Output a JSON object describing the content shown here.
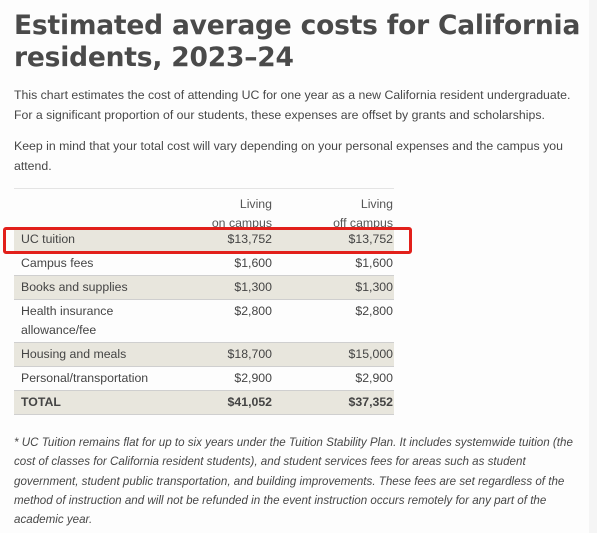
{
  "title": "Estimated average costs for California residents, 2023–24",
  "intro": "This chart estimates the cost of attending UC for one year as a new California resident undergraduate. For a significant proportion of our students, these expenses are offset by grants and scholarships.",
  "intro2": "Keep in mind that your total cost will vary depending on your personal expenses and the campus you attend.",
  "table": {
    "col1_line1": "Living",
    "col1_line2": "on campus",
    "col2_line1": "Living",
    "col2_line2": "off campus",
    "rows": [
      {
        "label": "UC tuition",
        "on": "$13,752",
        "off": "$13,752"
      },
      {
        "label": "Campus fees",
        "on": "$1,600",
        "off": "$1,600"
      },
      {
        "label": "Books and supplies",
        "on": "$1,300",
        "off": "$1,300"
      },
      {
        "label_line1": "Health insurance",
        "label_line2": "allowance/fee",
        "on": "$2,800",
        "off": "$2,800"
      },
      {
        "label": "Housing and meals",
        "on": "$18,700",
        "off": "$15,000"
      },
      {
        "label": "Personal/transportation",
        "on": "$2,900",
        "off": "$2,900"
      },
      {
        "label": "TOTAL",
        "on": "$41,052",
        "off": "$37,352"
      }
    ]
  },
  "footnote": "* UC Tuition remains flat for up to six years under the Tuition Stability Plan. It includes systemwide tuition (the cost of classes for California resident students), and student services fees for areas such as student government, student public transportation, and building improvements. These fees are set regardless of the method of instruction and will not be refunded in the event instruction occurs remotely for any part of the academic year."
}
